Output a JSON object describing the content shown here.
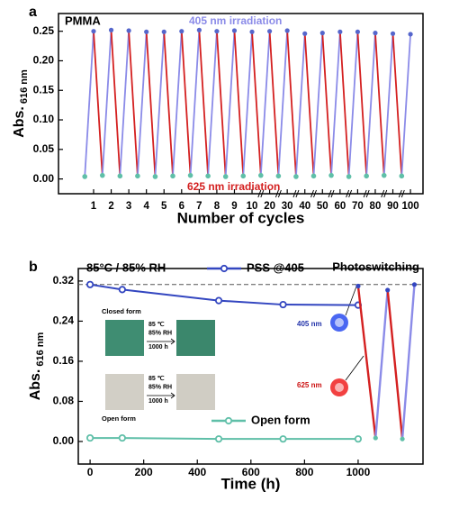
{
  "chart_data": [
    {
      "type": "zigzag",
      "panel_label": "a",
      "title": "PMMA",
      "xlabel": "Number of cycles",
      "ylabel": "Abs.",
      "ylabel_sub": "616 nm",
      "categories": [
        "1",
        "2",
        "3",
        "4",
        "5",
        "6",
        "7",
        "8",
        "9",
        "10",
        "20",
        "30",
        "40",
        "50",
        "60",
        "70",
        "80",
        "90",
        "100"
      ],
      "series": [
        {
          "name": "405 nm irradiation",
          "color": "#8b8be8",
          "marker_color": "#5566cc",
          "values": [
            0.25,
            0.252,
            0.251,
            0.249,
            0.249,
            0.25,
            0.252,
            0.25,
            0.251,
            0.249,
            0.25,
            0.251,
            0.246,
            0.247,
            0.249,
            0.249,
            0.247,
            0.246,
            0.245
          ]
        },
        {
          "name": "625 nm irradiation",
          "color": "#d42020",
          "marker_color": "#5fbfa8",
          "values": [
            0.004,
            0.006,
            0.005,
            0.005,
            0.004,
            0.005,
            0.006,
            0.005,
            0.004,
            0.005,
            0.006,
            0.005,
            0.004,
            0.005,
            0.006,
            0.004,
            0.005,
            0.006,
            0.005
          ]
        }
      ],
      "ylim": [
        -0.025,
        0.28
      ],
      "yticks": [
        {
          "value": 0,
          "label": "0.00"
        },
        {
          "value": 0.05,
          "label": "0.05"
        },
        {
          "value": 0.1,
          "label": "0.10"
        },
        {
          "value": 0.15,
          "label": "0.15"
        },
        {
          "value": 0.2,
          "label": "0.20"
        },
        {
          "value": 0.25,
          "label": "0.25"
        }
      ]
    },
    {
      "type": "line",
      "panel_label": "b",
      "condition": "85°C / 85% RH",
      "xlabel": "Time (h)",
      "ylabel": "Abs.",
      "ylabel_sub": "616 nm",
      "series": [
        {
          "name": "PSS @405",
          "color": "#3346c0",
          "marker_color": "#3346c0",
          "x": [
            0,
            120,
            480,
            720,
            1000
          ],
          "values": [
            0.313,
            0.303,
            0.281,
            0.273,
            0.272
          ]
        },
        {
          "name": "Open form",
          "color": "#5fbfa8",
          "marker_color": "#5fbfa8",
          "x": [
            0,
            120,
            480,
            720,
            1000
          ],
          "values": [
            0.007,
            0.007,
            0.005,
            0.005,
            0.005
          ]
        },
        {
          "name": "Photoswitching",
          "rise_color": "#8b8be8",
          "fall_color": "#d42020",
          "x": [
            1000,
            1065,
            1110,
            1165,
            1210
          ],
          "values": [
            0.31,
            0.007,
            0.302,
            0.005,
            0.313
          ]
        }
      ],
      "reference_line": 0.313,
      "xlim": [
        -44,
        1242
      ],
      "xticks": [
        0,
        200,
        400,
        600,
        800,
        1000
      ],
      "ylim": [
        -0.045,
        0.345
      ],
      "yticks": [
        {
          "value": 0,
          "label": "0.00"
        },
        {
          "value": 0.08,
          "label": "0.08"
        },
        {
          "value": 0.16,
          "label": "0.16"
        },
        {
          "value": 0.24,
          "label": "0.24"
        },
        {
          "value": 0.32,
          "label": "0.32"
        }
      ],
      "annotations": {
        "blue_light": "405 nm",
        "red_light": "625 nm",
        "inset": {
          "closed": "Closed form",
          "open": "Open form",
          "closed_steps": [
            "85 ℃",
            "85% RH",
            "1000 h"
          ],
          "open_steps": [
            "85 ℃",
            "85% RH",
            "1000 h"
          ]
        }
      }
    }
  ]
}
